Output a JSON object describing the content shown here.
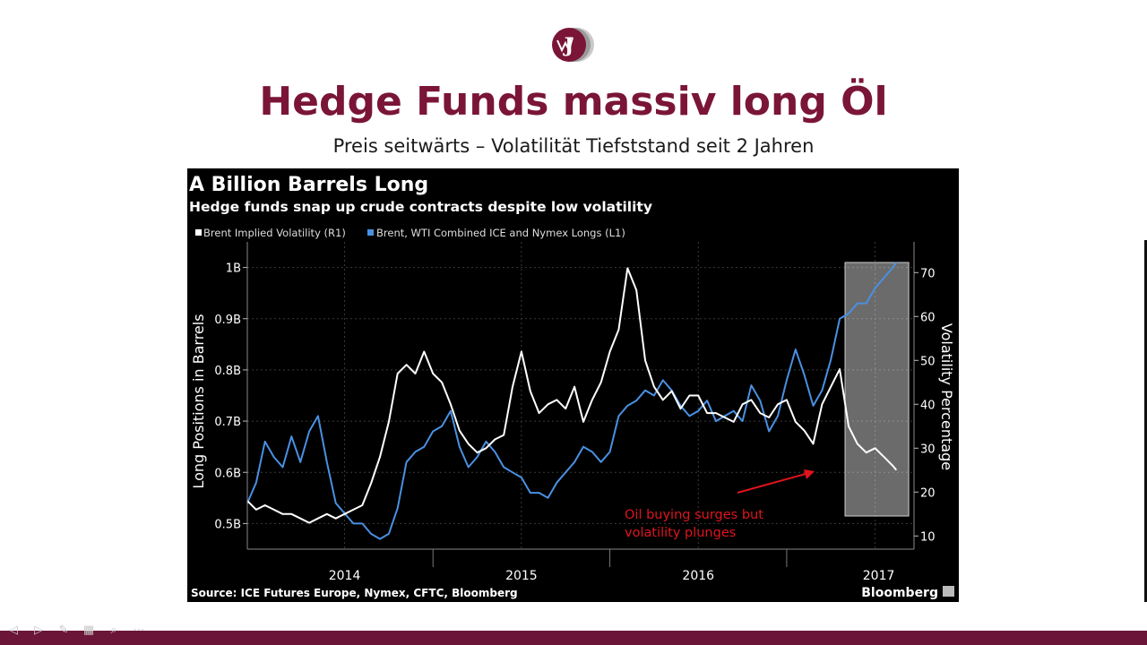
{
  "slide": {
    "title": "Hedge Funds massiv long Öl",
    "subtitle": "Preis seitwärts – Volatilität Tiefststand seit 2 Jahren"
  },
  "logo": {
    "icon": "jv-logo-icon",
    "colors": {
      "primary": "#7a1538",
      "secondary": "#9a9a9a"
    }
  },
  "chart_data": {
    "type": "line",
    "title": "A Billion Barrels Long",
    "subtitle": "Hedge funds snap up crude contracts despite low volatility",
    "legend": {
      "placement": "top-left",
      "entries": [
        {
          "name": "Brent Implied Volatility (R1)",
          "color": "#ffffff"
        },
        {
          "name": "Brent, WTI Combined ICE and Nymex Longs (L1)",
          "color": "#4a90e2"
        }
      ]
    },
    "ylabel": "Long Positions in Barrels",
    "y2label": "Volatility Percentage",
    "ylim": [
      0.45,
      1.05
    ],
    "y2lim": [
      7,
      77
    ],
    "xlim": [
      2013.45,
      2017.22
    ],
    "yticks": [
      {
        "value": 1.0,
        "label": "1B"
      },
      {
        "value": 0.9,
        "label": "0.9B"
      },
      {
        "value": 0.8,
        "label": "0.8B"
      },
      {
        "value": 0.7,
        "label": "0.7B"
      },
      {
        "value": 0.6,
        "label": "0.6B"
      },
      {
        "value": 0.5,
        "label": "0.5B"
      }
    ],
    "y2ticks": [
      70,
      60,
      50,
      40,
      30,
      20,
      10
    ],
    "xticks": [
      {
        "value": 2014,
        "label": "2014"
      },
      {
        "value": 2015,
        "label": "2015"
      },
      {
        "value": 2016,
        "label": "2016"
      },
      {
        "value": 2017,
        "label": "2017"
      }
    ],
    "year_boundaries": [
      2014.5,
      2015.5,
      2016.5
    ],
    "grid": true,
    "highlight_box": {
      "x_start": 2016.83,
      "x_end": 2017.19
    },
    "annotation": {
      "text": [
        "Oil buying surges but",
        "volatility plunges"
      ],
      "color": "#e0141e"
    },
    "series": [
      {
        "name": "Brent, WTI Combined ICE and Nymex Longs (L1)",
        "axis": "left",
        "color": "#4a90e2",
        "x": [
          2013.45,
          2013.5,
          2013.55,
          2013.6,
          2013.65,
          2013.7,
          2013.75,
          2013.8,
          2013.85,
          2013.9,
          2013.95,
          2014.0,
          2014.05,
          2014.1,
          2014.15,
          2014.2,
          2014.25,
          2014.3,
          2014.35,
          2014.4,
          2014.45,
          2014.5,
          2014.55,
          2014.6,
          2014.65,
          2014.7,
          2014.75,
          2014.8,
          2014.85,
          2014.9,
          2014.95,
          2015.0,
          2015.05,
          2015.1,
          2015.15,
          2015.2,
          2015.25,
          2015.3,
          2015.35,
          2015.4,
          2015.45,
          2015.5,
          2015.55,
          2015.6,
          2015.65,
          2015.7,
          2015.75,
          2015.8,
          2015.85,
          2015.9,
          2015.95,
          2016.0,
          2016.05,
          2016.1,
          2016.15,
          2016.2,
          2016.25,
          2016.3,
          2016.35,
          2016.4,
          2016.45,
          2016.5,
          2016.55,
          2016.6,
          2016.65,
          2016.7,
          2016.75,
          2016.8,
          2016.85,
          2016.9,
          2016.95,
          2017.0,
          2017.05,
          2017.1,
          2017.12
        ],
        "values": [
          0.54,
          0.58,
          0.66,
          0.63,
          0.61,
          0.67,
          0.62,
          0.68,
          0.71,
          0.62,
          0.54,
          0.52,
          0.5,
          0.5,
          0.48,
          0.47,
          0.48,
          0.53,
          0.62,
          0.64,
          0.65,
          0.68,
          0.69,
          0.72,
          0.65,
          0.61,
          0.63,
          0.66,
          0.64,
          0.61,
          0.6,
          0.59,
          0.56,
          0.56,
          0.55,
          0.58,
          0.6,
          0.62,
          0.65,
          0.64,
          0.62,
          0.64,
          0.71,
          0.73,
          0.74,
          0.76,
          0.75,
          0.78,
          0.76,
          0.73,
          0.71,
          0.72,
          0.74,
          0.7,
          0.71,
          0.72,
          0.7,
          0.77,
          0.74,
          0.68,
          0.71,
          0.78,
          0.84,
          0.79,
          0.73,
          0.76,
          0.82,
          0.9,
          0.91,
          0.93,
          0.93,
          0.96,
          0.98,
          1.0,
          1.01
        ]
      },
      {
        "name": "Brent Implied Volatility (R1)",
        "axis": "right",
        "color": "#ffffff",
        "x": [
          2013.45,
          2013.5,
          2013.55,
          2013.6,
          2013.65,
          2013.7,
          2013.75,
          2013.8,
          2013.85,
          2013.9,
          2013.95,
          2014.0,
          2014.05,
          2014.1,
          2014.15,
          2014.2,
          2014.25,
          2014.3,
          2014.35,
          2014.4,
          2014.45,
          2014.5,
          2014.55,
          2014.6,
          2014.65,
          2014.7,
          2014.75,
          2014.8,
          2014.85,
          2014.9,
          2014.95,
          2015.0,
          2015.05,
          2015.1,
          2015.15,
          2015.2,
          2015.25,
          2015.3,
          2015.35,
          2015.4,
          2015.45,
          2015.5,
          2015.55,
          2015.6,
          2015.65,
          2015.7,
          2015.75,
          2015.8,
          2015.85,
          2015.9,
          2015.95,
          2016.0,
          2016.05,
          2016.1,
          2016.15,
          2016.2,
          2016.25,
          2016.3,
          2016.35,
          2016.4,
          2016.45,
          2016.5,
          2016.55,
          2016.6,
          2016.65,
          2016.7,
          2016.75,
          2016.8,
          2016.85,
          2016.9,
          2016.95,
          2017.0,
          2017.05,
          2017.1,
          2017.12
        ],
        "values": [
          18,
          16,
          17,
          16,
          15,
          15,
          14,
          13,
          14,
          15,
          14,
          15,
          16,
          17,
          22,
          28,
          36,
          47,
          49,
          47,
          52,
          47,
          45,
          40,
          34,
          31,
          29,
          30,
          32,
          33,
          44,
          52,
          43,
          38,
          40,
          41,
          39,
          44,
          36,
          41,
          45,
          52,
          57,
          71,
          66,
          50,
          44,
          41,
          43,
          39,
          42,
          42,
          38,
          38,
          37,
          36,
          40,
          41,
          38,
          37,
          40,
          41,
          36,
          34,
          31,
          40,
          44,
          48,
          35,
          31,
          29,
          30,
          28,
          26,
          25
        ]
      }
    ],
    "source": "Source: ICE Futures Europe, Nymex, CFTC, Bloomberg",
    "brand": "Bloomberg"
  }
}
